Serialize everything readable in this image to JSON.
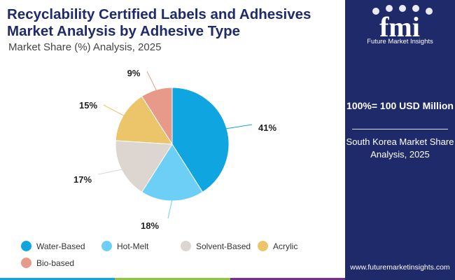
{
  "title": "Recyclability Certified Labels and Adhesives Market Analysis by Adhesive Type",
  "subtitle": "Market Share (%) Analysis, 2025",
  "brand": {
    "name": "Future Market Insights",
    "logo": "fmi",
    "website": "www.futuremarketinsights.com",
    "color": "#1f2a6b"
  },
  "side_panel": {
    "total": "100%= 100 USD Million",
    "region": "South Korea Market Share Analysis, 2025"
  },
  "chart_data": {
    "type": "pie",
    "title": "Recyclability Certified Labels and Adhesives Market Analysis by Adhesive Type",
    "subtitle": "Market Share (%) Analysis, 2025",
    "unit": "%",
    "start": "12 o'clock",
    "direction": "clockwise",
    "legend_position": "bottom",
    "slices": [
      {
        "name": "Water-Based",
        "value": 41,
        "label": "41%",
        "color": "#0ea5e0"
      },
      {
        "name": "Hot-Melt",
        "value": 18,
        "label": "18%",
        "color": "#6dcff6"
      },
      {
        "name": "Solvent-Based",
        "value": 17,
        "label": "17%",
        "color": "#dcd5d0"
      },
      {
        "name": "Acrylic",
        "value": 15,
        "label": "15%",
        "color": "#ecc46a"
      },
      {
        "name": "Bio-based",
        "value": 9,
        "label": "9%",
        "color": "#e89a8a"
      }
    ]
  },
  "bottom_bar_colors": [
    "#0ea5e0",
    "#8dc63f",
    "#7b2d8e"
  ]
}
